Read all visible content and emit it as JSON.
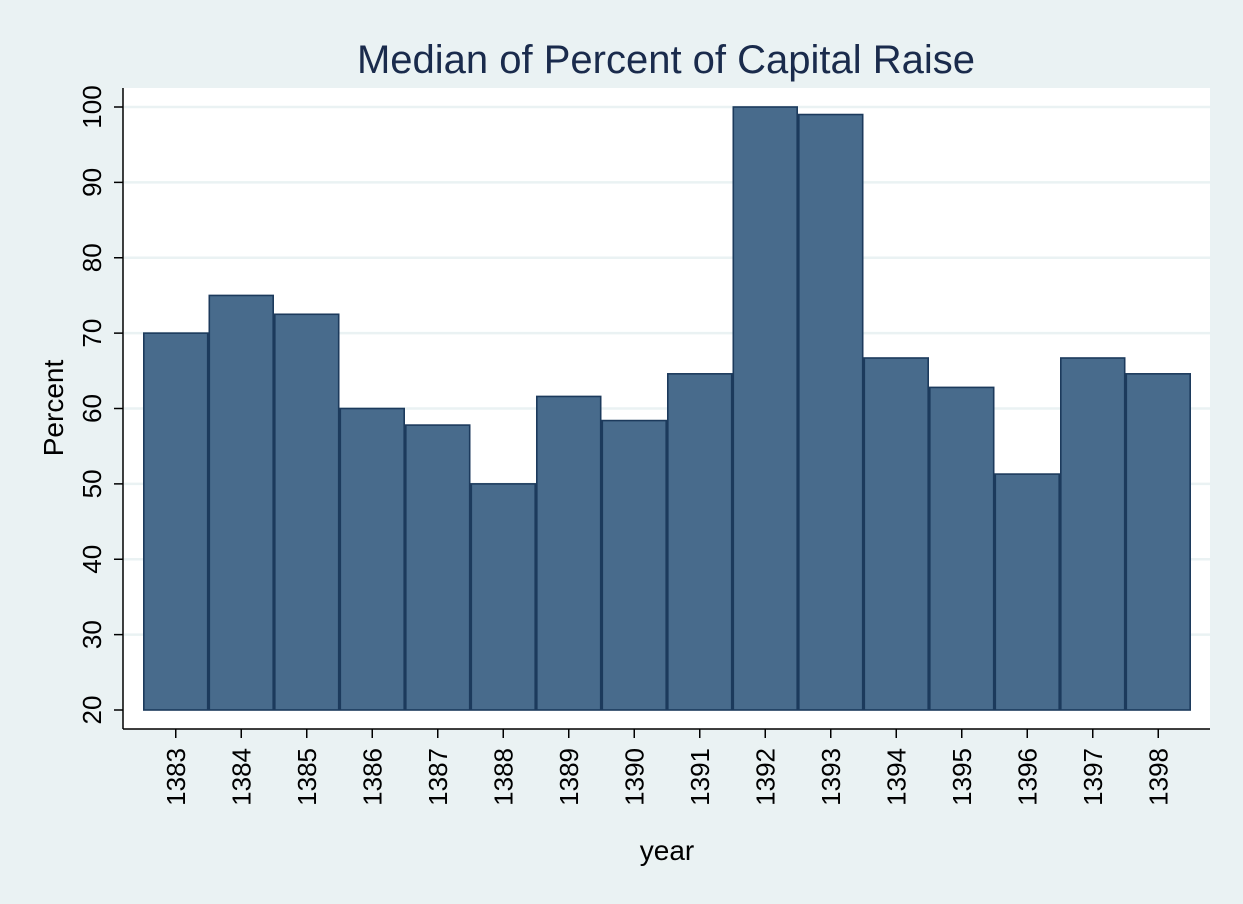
{
  "chart_data": {
    "type": "bar",
    "title": "Median of Percent of Capital Raise",
    "xlabel": "year",
    "ylabel": "Percent",
    "categories": [
      "1383",
      "1384",
      "1385",
      "1386",
      "1387",
      "1388",
      "1389",
      "1390",
      "1391",
      "1392",
      "1393",
      "1394",
      "1395",
      "1396",
      "1397",
      "1398"
    ],
    "values": [
      70,
      75,
      72.5,
      60,
      57.8,
      50,
      61.6,
      58.4,
      64.6,
      100,
      99,
      66.7,
      62.8,
      51.3,
      66.7,
      64.6
    ],
    "ylim": [
      20,
      100
    ],
    "yticks": [
      20,
      30,
      40,
      50,
      60,
      70,
      80,
      90,
      100
    ],
    "bar_base": 20,
    "grid": true,
    "colors": {
      "bar_fill": "#486b8c",
      "bar_stroke": "#1c3a5c",
      "background": "#eaf2f3",
      "plot_background": "#ffffff",
      "grid": "#eaf2f3",
      "title": "#1a2b4c"
    }
  }
}
